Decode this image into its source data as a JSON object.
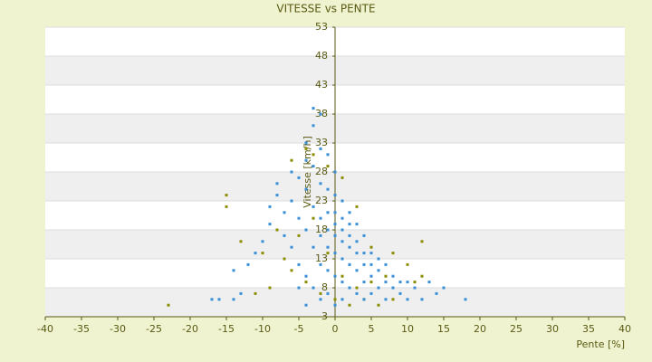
{
  "chart_data": {
    "type": "scatter",
    "title": "VITESSE vs PENTE",
    "x_label": "Pente [%]",
    "y_label": "Vitesse [km/h]",
    "xlim": [
      -40,
      40
    ],
    "xticks": [
      -40,
      -35,
      -30,
      -25,
      -20,
      -15,
      -10,
      -5,
      0,
      5,
      10,
      15,
      20,
      25,
      30,
      35,
      40
    ],
    "ylim": [
      3,
      53
    ],
    "yticks": [
      3,
      8,
      13,
      18,
      23,
      28,
      33,
      38,
      43,
      48,
      53
    ],
    "grid": true,
    "series": [
      {
        "color": "#8c8c00",
        "x": [
          -23,
          -15,
          -15,
          -13,
          -11,
          -10,
          -9,
          -8,
          -7,
          -6,
          -6,
          -5,
          -4,
          -4,
          -3,
          -3,
          -2,
          -1,
          -1,
          0,
          1,
          1,
          2,
          2,
          3,
          3,
          4,
          5,
          5,
          6,
          7,
          8,
          8,
          10,
          11,
          12,
          12
        ],
        "y": [
          5,
          22,
          24,
          16,
          7,
          14,
          8,
          18,
          13,
          30,
          11,
          17,
          32,
          9,
          31,
          20,
          7,
          29,
          14,
          6,
          27,
          10,
          5,
          12,
          22,
          8,
          6,
          15,
          9,
          5,
          10,
          14,
          6,
          12,
          9,
          16,
          10
        ]
      },
      {
        "color": "#3a8fd8",
        "x": [
          -17,
          -16,
          -14,
          -13,
          -14,
          -12,
          -11,
          -10,
          -9,
          -9,
          -8,
          -8,
          -7,
          -7,
          -6,
          -6,
          -6,
          -5,
          -5,
          -5,
          -5,
          -4,
          -4,
          -4,
          -4,
          -4,
          -4,
          -3,
          -3,
          -3,
          -3,
          -3,
          -3,
          -2,
          -2,
          -2,
          -2,
          -2,
          -2,
          -2,
          -1,
          -1,
          -1,
          -1,
          -1,
          -1,
          -1,
          0,
          0,
          0,
          0,
          0,
          0,
          0,
          0,
          1,
          1,
          1,
          1,
          1,
          1,
          1,
          2,
          2,
          2,
          2,
          2,
          2,
          3,
          3,
          3,
          3,
          3,
          4,
          4,
          4,
          4,
          4,
          5,
          5,
          5,
          5,
          6,
          6,
          6,
          7,
          7,
          7,
          8,
          8,
          9,
          9,
          10,
          10,
          11,
          12,
          13,
          14,
          15,
          18
        ],
        "y": [
          6,
          6,
          6,
          7,
          11,
          12,
          14,
          16,
          19,
          22,
          24,
          26,
          21,
          17,
          28,
          23,
          15,
          27,
          20,
          12,
          8,
          33,
          30,
          25,
          18,
          10,
          5,
          39,
          36,
          29,
          22,
          15,
          8,
          38,
          32,
          26,
          20,
          17,
          12,
          6,
          31,
          25,
          21,
          18,
          15,
          11,
          7,
          28,
          24,
          21,
          19,
          17,
          14,
          10,
          5,
          23,
          20,
          18,
          16,
          13,
          9,
          6,
          21,
          19,
          17,
          15,
          12,
          8,
          19,
          16,
          14,
          11,
          7,
          17,
          14,
          12,
          9,
          6,
          14,
          12,
          10,
          7,
          13,
          11,
          8,
          12,
          9,
          6,
          10,
          8,
          9,
          7,
          9,
          6,
          8,
          6,
          9,
          7,
          8,
          6
        ]
      }
    ]
  }
}
